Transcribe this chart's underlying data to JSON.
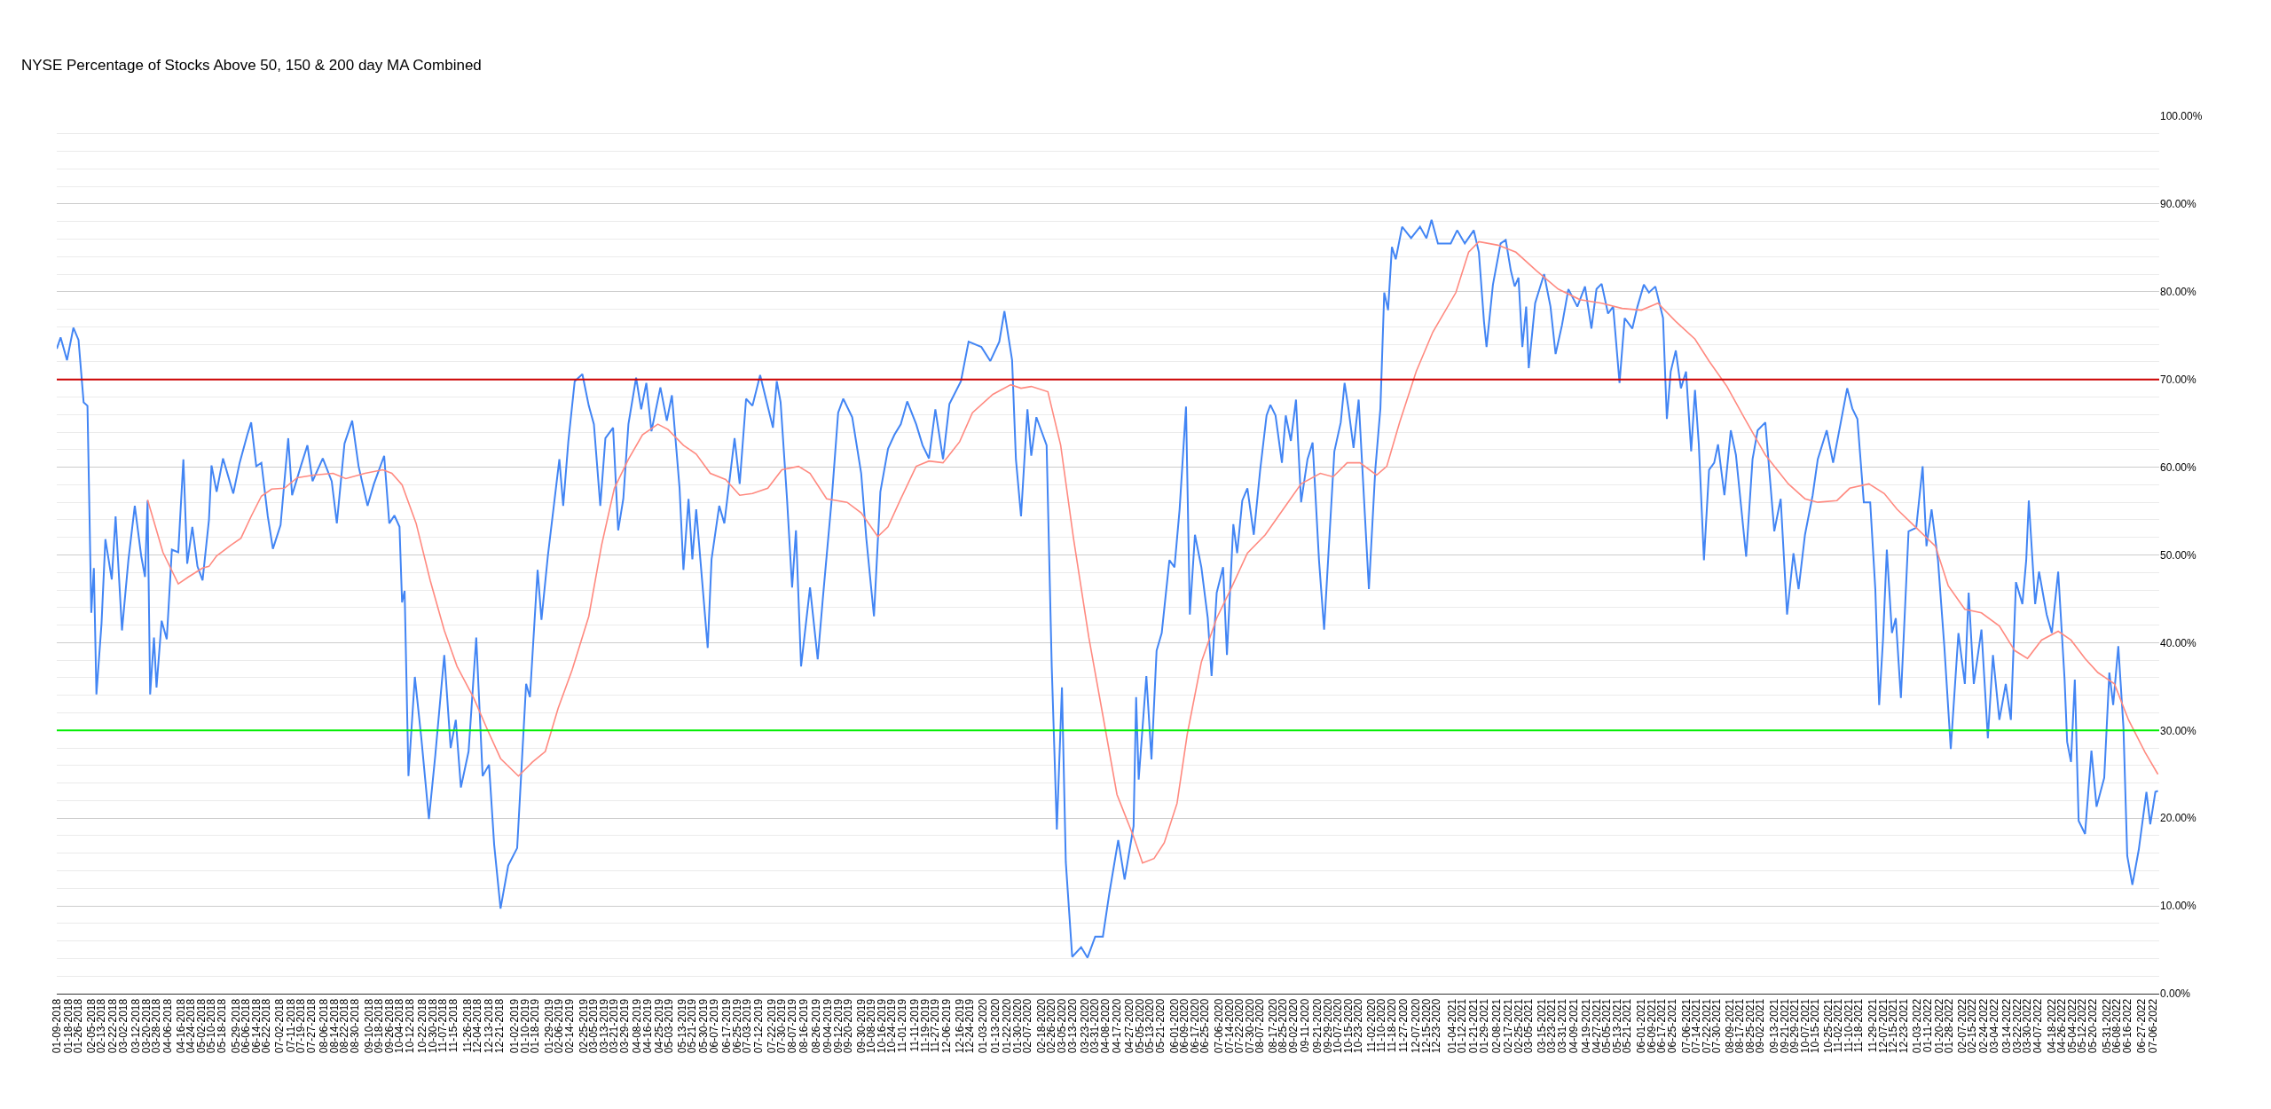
{
  "chart_data": {
    "type": "line",
    "title": "NYSE Percentage of Stocks Above 50, 150 & 200 day MA Combined",
    "series": [
      {
        "color": "#4285f4",
        "x": [
          "2018-01-09",
          "2018-01-12",
          "2018-01-17",
          "2018-01-22",
          "2018-01-26",
          "2018-01-30",
          "2018-02-02",
          "2018-02-05",
          "2018-02-07",
          "2018-02-09",
          "2018-02-13",
          "2018-02-16",
          "2018-02-21",
          "2018-02-24",
          "2018-03-01",
          "2018-03-06",
          "2018-03-11",
          "2018-03-16",
          "2018-03-19",
          "2018-03-21",
          "2018-03-23",
          "2018-03-26",
          "2018-03-28",
          "2018-04-01",
          "2018-04-05",
          "2018-04-09",
          "2018-04-14",
          "2018-04-18",
          "2018-04-21",
          "2018-04-25",
          "2018-04-29",
          "2018-05-03",
          "2018-05-08",
          "2018-05-10",
          "2018-05-14",
          "2018-05-19",
          "2018-05-27",
          "2018-06-01",
          "2018-06-07",
          "2018-06-10",
          "2018-06-14",
          "2018-06-18",
          "2018-06-23",
          "2018-06-27",
          "2018-07-03",
          "2018-07-09",
          "2018-07-12",
          "2018-07-19",
          "2018-07-24",
          "2018-07-28",
          "2018-08-05",
          "2018-08-12",
          "2018-08-16",
          "2018-08-22",
          "2018-08-28",
          "2018-09-02",
          "2018-09-09",
          "2018-09-14",
          "2018-09-22",
          "2018-09-26",
          "2018-09-30",
          "2018-10-04",
          "2018-10-06",
          "2018-10-08",
          "2018-10-11",
          "2018-10-16",
          "2018-10-21",
          "2018-10-27",
          "2018-11-01",
          "2018-11-08",
          "2018-11-13",
          "2018-11-17",
          "2018-11-21",
          "2018-11-27",
          "2018-12-03",
          "2018-12-08",
          "2018-12-13",
          "2018-12-17",
          "2018-12-22",
          "2018-12-28",
          "2019-01-04",
          "2019-01-11",
          "2019-01-14",
          "2019-01-20",
          "2019-01-23",
          "2019-01-28",
          "2019-02-02",
          "2019-02-06",
          "2019-02-09",
          "2019-02-13",
          "2019-02-18",
          "2019-02-24",
          "2019-03-01",
          "2019-03-05",
          "2019-03-10",
          "2019-03-14",
          "2019-03-20",
          "2019-03-24",
          "2019-03-28",
          "2019-04-01",
          "2019-04-07",
          "2019-04-11",
          "2019-04-15",
          "2019-04-19",
          "2019-04-26",
          "2019-05-01",
          "2019-05-05",
          "2019-05-11",
          "2019-05-14",
          "2019-05-18",
          "2019-05-21",
          "2019-05-24",
          "2019-06-02",
          "2019-06-05",
          "2019-06-11",
          "2019-06-15",
          "2019-06-23",
          "2019-06-27",
          "2019-07-02",
          "2019-07-07",
          "2019-07-13",
          "2019-07-23",
          "2019-07-26",
          "2019-07-29",
          "2019-08-03",
          "2019-08-07",
          "2019-08-10",
          "2019-08-14",
          "2019-08-21",
          "2019-08-27",
          "2019-08-31",
          "2019-09-07",
          "2019-09-12",
          "2019-09-16",
          "2019-09-23",
          "2019-09-30",
          "2019-10-04",
          "2019-10-10",
          "2019-10-15",
          "2019-10-21",
          "2019-10-26",
          "2019-10-31",
          "2019-11-05",
          "2019-11-12",
          "2019-11-17",
          "2019-11-22",
          "2019-11-27",
          "2019-12-03",
          "2019-12-08",
          "2019-12-17",
          "2019-12-23",
          "2020-01-02",
          "2020-01-09",
          "2020-01-16",
          "2020-01-20",
          "2020-01-26",
          "2020-01-29",
          "2020-02-02",
          "2020-02-07",
          "2020-02-10",
          "2020-02-14",
          "2020-02-22",
          "2020-02-26",
          "2020-03-01",
          "2020-03-05",
          "2020-03-08",
          "2020-03-13",
          "2020-03-20",
          "2020-03-25",
          "2020-03-31",
          "2020-04-06",
          "2020-04-11",
          "2020-04-18",
          "2020-04-23",
          "2020-04-30",
          "2020-05-02",
          "2020-05-04",
          "2020-05-10",
          "2020-05-14",
          "2020-05-18",
          "2020-05-22",
          "2020-05-28",
          "2020-06-01",
          "2020-06-05",
          "2020-06-10",
          "2020-06-13",
          "2020-06-17",
          "2020-06-22",
          "2020-06-27",
          "2020-06-30",
          "2020-07-04",
          "2020-07-09",
          "2020-07-12",
          "2020-07-17",
          "2020-07-20",
          "2020-07-24",
          "2020-07-28",
          "2020-08-02",
          "2020-08-07",
          "2020-08-12",
          "2020-08-15",
          "2020-08-19",
          "2020-08-24",
          "2020-08-27",
          "2020-08-31",
          "2020-09-04",
          "2020-09-08",
          "2020-09-13",
          "2020-09-17",
          "2020-09-22",
          "2020-09-26",
          "2020-09-30",
          "2020-10-04",
          "2020-10-09",
          "2020-10-12",
          "2020-10-15",
          "2020-10-19",
          "2020-10-23",
          "2020-10-31",
          "2020-11-05",
          "2020-11-09",
          "2020-11-12",
          "2020-11-15",
          "2020-11-18",
          "2020-11-21",
          "2020-11-26",
          "2020-12-03",
          "2020-12-10",
          "2020-12-15",
          "2020-12-19",
          "2020-12-24",
          "2021-01-03",
          "2021-01-08",
          "2021-01-14",
          "2021-01-21",
          "2021-01-25",
          "2021-01-29",
          "2021-01-31",
          "2021-02-05",
          "2021-02-11",
          "2021-02-15",
          "2021-02-19",
          "2021-02-22",
          "2021-02-25",
          "2021-02-28",
          "2021-03-03",
          "2021-03-05",
          "2021-03-10",
          "2021-03-17",
          "2021-03-22",
          "2021-03-26",
          "2021-03-31",
          "2021-04-05",
          "2021-04-12",
          "2021-04-18",
          "2021-04-23",
          "2021-04-27",
          "2021-05-01",
          "2021-05-06",
          "2021-05-10",
          "2021-05-15",
          "2021-05-19",
          "2021-05-25",
          "2021-05-29",
          "2021-06-03",
          "2021-06-07",
          "2021-06-12",
          "2021-06-18",
          "2021-06-21",
          "2021-06-24",
          "2021-06-28",
          "2021-07-02",
          "2021-07-06",
          "2021-07-10",
          "2021-07-13",
          "2021-07-16",
          "2021-07-20",
          "2021-07-24",
          "2021-07-28",
          "2021-07-31",
          "2021-08-05",
          "2021-08-10",
          "2021-08-14",
          "2021-08-22",
          "2021-08-27",
          "2021-08-31",
          "2021-09-06",
          "2021-09-13",
          "2021-09-18",
          "2021-09-23",
          "2021-09-28",
          "2021-10-02",
          "2021-10-07",
          "2021-10-13",
          "2021-10-17",
          "2021-10-24",
          "2021-10-29",
          "2021-11-04",
          "2021-11-09",
          "2021-11-13",
          "2021-11-17",
          "2021-11-22",
          "2021-11-27",
          "2021-12-01",
          "2021-12-04",
          "2021-12-07",
          "2021-12-10",
          "2021-12-14",
          "2021-12-17",
          "2021-12-21",
          "2021-12-27",
          "2022-01-02",
          "2022-01-07",
          "2022-01-10",
          "2022-01-14",
          "2022-01-19",
          "2022-01-24",
          "2022-01-29",
          "2022-02-04",
          "2022-02-09",
          "2022-02-12",
          "2022-02-16",
          "2022-02-22",
          "2022-02-27",
          "2022-03-03",
          "2022-03-08",
          "2022-03-13",
          "2022-03-17",
          "2022-03-21",
          "2022-03-26",
          "2022-03-29",
          "2022-03-31",
          "2022-04-05",
          "2022-04-08",
          "2022-04-14",
          "2022-04-18",
          "2022-04-23",
          "2022-04-28",
          "2022-04-30",
          "2022-05-03",
          "2022-05-06",
          "2022-05-09",
          "2022-05-14",
          "2022-05-19",
          "2022-05-23",
          "2022-05-29",
          "2022-06-02",
          "2022-06-05",
          "2022-06-09",
          "2022-06-13",
          "2022-06-16",
          "2022-06-20",
          "2022-06-25",
          "2022-07-01",
          "2022-07-04",
          "2022-07-08",
          "2022-07-10"
        ],
        "values": [
          73.5,
          74.8,
          72.2,
          75.9,
          74.5,
          67.4,
          67.0,
          43.4,
          48.5,
          34.1,
          42.2,
          51.8,
          47.2,
          54.4,
          41.4,
          49.4,
          55.6,
          49.9,
          47.5,
          56.2,
          34.1,
          40.6,
          34.9,
          42.5,
          40.4,
          50.6,
          50.3,
          60.9,
          49.0,
          53.2,
          48.7,
          47.1,
          54.0,
          60.2,
          57.2,
          61.0,
          57.0,
          60.5,
          63.7,
          65.1,
          60.1,
          60.5,
          54.4,
          50.7,
          53.4,
          63.3,
          56.8,
          60.2,
          62.5,
          58.4,
          61.0,
          58.4,
          53.6,
          62.7,
          65.3,
          60.1,
          55.6,
          58.1,
          61.3,
          53.6,
          54.5,
          53.2,
          44.6,
          45.9,
          24.8,
          36.1,
          29.2,
          19.9,
          27.2,
          38.6,
          28.0,
          31.2,
          23.5,
          27.6,
          40.6,
          24.8,
          26.1,
          17.0,
          9.7,
          14.6,
          16.6,
          35.3,
          33.8,
          48.3,
          42.6,
          49.9,
          56.0,
          60.9,
          55.6,
          62.9,
          69.8,
          70.6,
          67.0,
          64.9,
          55.6,
          63.3,
          64.5,
          52.8,
          56.4,
          64.9,
          70.2,
          66.6,
          69.6,
          64.1,
          69.1,
          65.3,
          68.2,
          57.6,
          48.3,
          56.4,
          49.5,
          55.2,
          39.4,
          49.5,
          55.6,
          53.6,
          63.3,
          58.1,
          67.8,
          67.0,
          70.5,
          64.5,
          69.8,
          67.4,
          56.4,
          46.3,
          52.8,
          37.3,
          46.3,
          38.1,
          45.0,
          56.4,
          66.2,
          67.8,
          65.7,
          59.3,
          51.9,
          43.0,
          57.2,
          62.1,
          63.7,
          64.9,
          67.5,
          64.9,
          62.5,
          61.0,
          66.6,
          60.9,
          67.2,
          69.8,
          74.3,
          73.7,
          72.1,
          74.3,
          77.8,
          72.2,
          60.9,
          54.4,
          66.6,
          61.3,
          65.7,
          62.5,
          37.3,
          18.7,
          34.9,
          15.0,
          4.2,
          5.3,
          4.1,
          6.5,
          6.5,
          11.4,
          17.5,
          13.0,
          19.1,
          33.8,
          24.4,
          36.2,
          26.7,
          39.1,
          41.1,
          49.4,
          48.6,
          55.2,
          66.9,
          43.2,
          52.3,
          48.6,
          42.8,
          36.2,
          45.7,
          48.6,
          38.6,
          53.5,
          50.2,
          56.2,
          57.6,
          52.3,
          59.7,
          65.9,
          67.1,
          65.9,
          60.5,
          65.9,
          63.0,
          67.7,
          56.0,
          60.9,
          62.8,
          49.4,
          41.5,
          51.7,
          61.8,
          65.1,
          69.6,
          66.7,
          62.2,
          67.7,
          46.1,
          59.7,
          66.7,
          79.9,
          77.9,
          85.1,
          83.7,
          87.4,
          86.1,
          87.4,
          86.1,
          88.2,
          85.5,
          85.5,
          87.0,
          85.5,
          87.0,
          84.5,
          76.6,
          73.7,
          80.8,
          85.5,
          85.9,
          82.4,
          80.6,
          81.6,
          73.7,
          78.3,
          71.3,
          78.7,
          82.0,
          78.3,
          72.9,
          76.2,
          80.3,
          78.3,
          80.6,
          75.8,
          80.3,
          80.9,
          77.5,
          78.3,
          69.6,
          77.0,
          75.8,
          78.3,
          80.8,
          79.9,
          80.6,
          77.0,
          65.5,
          70.9,
          73.3,
          69.0,
          70.9,
          61.8,
          68.8,
          62.6,
          49.4,
          59.7,
          60.5,
          62.6,
          56.8,
          64.2,
          61.4,
          49.8,
          60.9,
          64.2,
          65.1,
          52.7,
          56.4,
          43.2,
          50.2,
          46.1,
          52.3,
          56.8,
          60.9,
          64.2,
          60.5,
          65.1,
          69.0,
          66.7,
          65.5,
          56.0,
          56.0,
          46.1,
          32.9,
          40.3,
          50.6,
          41.1,
          42.8,
          33.7,
          52.7,
          53.1,
          60.1,
          51.0,
          55.2,
          49.4,
          39.5,
          27.9,
          41.1,
          35.3,
          45.7,
          35.3,
          41.5,
          29.1,
          38.6,
          31.2,
          35.3,
          31.2,
          46.9,
          44.4,
          49.4,
          56.2,
          44.4,
          48.1,
          43.2,
          41.1,
          48.1,
          35.8,
          28.7,
          26.4,
          35.8,
          19.7,
          18.2,
          27.7,
          21.3,
          24.6,
          36.6,
          32.9,
          39.6,
          30.4,
          15.7,
          12.4,
          16.4,
          23.0,
          19.3,
          23.0,
          23.1
        ]
      },
      {
        "color": "#ff8a80",
        "x": [
          "2018-03-21",
          "2018-04-02",
          "2018-04-14",
          "2018-04-22",
          "2018-05-03",
          "2018-05-08",
          "2018-05-14",
          "2018-05-25",
          "2018-06-02",
          "2018-06-10",
          "2018-06-18",
          "2018-06-26",
          "2018-07-06",
          "2018-07-16",
          "2018-07-29",
          "2018-08-13",
          "2018-08-23",
          "2018-09-07",
          "2018-09-21",
          "2018-09-28",
          "2018-10-06",
          "2018-10-17",
          "2018-10-28",
          "2018-11-08",
          "2018-11-18",
          "2018-12-01",
          "2018-12-12",
          "2018-12-22",
          "2019-01-05",
          "2019-01-16",
          "2019-01-26",
          "2019-02-05",
          "2019-02-16",
          "2019-03-01",
          "2019-03-11",
          "2019-03-21",
          "2019-04-01",
          "2019-04-12",
          "2019-04-24",
          "2019-05-02",
          "2019-05-14",
          "2019-05-24",
          "2019-06-04",
          "2019-06-16",
          "2019-06-27",
          "2019-07-07",
          "2019-07-19",
          "2019-07-30",
          "2019-08-12",
          "2019-08-21",
          "2019-09-03",
          "2019-09-19",
          "2019-09-30",
          "2019-10-13",
          "2019-10-21",
          "2019-10-31",
          "2019-11-12",
          "2019-11-22",
          "2019-12-03",
          "2019-12-16",
          "2019-12-26",
          "2020-01-11",
          "2020-01-25",
          "2020-02-02",
          "2020-02-10",
          "2020-02-23",
          "2020-03-04",
          "2020-03-14",
          "2020-03-26",
          "2020-04-06",
          "2020-04-17",
          "2020-04-30",
          "2020-05-07",
          "2020-05-16",
          "2020-05-24",
          "2020-06-03",
          "2020-06-11",
          "2020-06-22",
          "2020-07-04",
          "2020-07-15",
          "2020-07-28",
          "2020-08-11",
          "2020-08-25",
          "2020-09-08",
          "2020-09-23",
          "2020-10-03",
          "2020-10-14",
          "2020-10-24",
          "2020-11-06",
          "2020-11-14",
          "2020-11-24",
          "2020-12-07",
          "2020-12-20",
          "2021-01-07",
          "2021-01-17",
          "2021-01-25",
          "2021-02-09",
          "2021-02-23",
          "2021-03-11",
          "2021-03-28",
          "2021-04-14",
          "2021-05-01",
          "2021-05-17",
          "2021-06-01",
          "2021-06-14",
          "2021-06-28",
          "2021-07-13",
          "2021-07-24",
          "2021-08-07",
          "2021-08-21",
          "2021-09-06",
          "2021-09-24",
          "2021-10-07",
          "2021-10-17",
          "2021-11-01",
          "2021-11-11",
          "2021-11-26",
          "2021-12-08",
          "2021-12-18",
          "2022-01-02",
          "2022-01-17",
          "2022-01-27",
          "2022-02-09",
          "2022-02-22",
          "2022-03-08",
          "2022-03-20",
          "2022-03-30",
          "2022-04-10",
          "2022-04-23",
          "2022-05-03",
          "2022-05-14",
          "2022-05-24",
          "2022-06-06",
          "2022-06-17",
          "2022-06-30",
          "2022-07-10"
        ],
        "values": [
          56.3,
          50.3,
          46.7,
          47.5,
          48.5,
          48.7,
          49.9,
          51.1,
          51.9,
          54.4,
          56.7,
          57.5,
          57.6,
          58.8,
          59.1,
          59.3,
          58.7,
          59.3,
          59.7,
          59.3,
          58.0,
          53.6,
          47.1,
          41.4,
          37.3,
          33.7,
          30.0,
          26.8,
          24.8,
          26.4,
          27.6,
          32.5,
          36.9,
          43.0,
          51.1,
          57.6,
          60.9,
          63.7,
          64.9,
          64.3,
          62.5,
          61.5,
          59.3,
          58.6,
          56.8,
          57.0,
          57.6,
          59.7,
          60.1,
          59.3,
          56.4,
          56.0,
          54.8,
          52.1,
          53.2,
          56.4,
          60.1,
          60.7,
          60.5,
          62.9,
          66.2,
          68.3,
          69.4,
          69.0,
          69.2,
          68.6,
          62.5,
          51.9,
          40.6,
          31.7,
          22.7,
          17.9,
          14.9,
          15.4,
          17.2,
          21.7,
          29.6,
          37.8,
          42.8,
          46.1,
          50.2,
          52.3,
          55.2,
          58.1,
          59.3,
          58.9,
          60.5,
          60.5,
          59.1,
          60.1,
          65.1,
          70.9,
          75.4,
          79.9,
          84.5,
          85.7,
          85.3,
          84.5,
          82.4,
          80.3,
          79.1,
          78.7,
          78.1,
          77.9,
          78.7,
          76.6,
          74.6,
          72.1,
          69.2,
          65.5,
          61.4,
          58.1,
          56.4,
          56.0,
          56.2,
          57.6,
          58.1,
          57.0,
          55.2,
          53.1,
          51.0,
          46.5,
          43.8,
          43.4,
          41.9,
          39.1,
          38.2,
          40.3,
          41.3,
          40.3,
          38.2,
          36.6,
          35.3,
          31.2,
          27.5,
          25.0
        ]
      }
    ],
    "ref_lines": [
      {
        "axis": "y",
        "value": 70,
        "color": "#cc0000"
      },
      {
        "axis": "y",
        "value": 30,
        "color": "#00ee00"
      }
    ],
    "xlim": [
      "2018-01-09",
      "2022-07-11"
    ],
    "xticks": [
      {
        "value": "2018-01-09",
        "label": "01-09-2018"
      },
      {
        "value": "2018-01-18",
        "label": "01-18-2018"
      },
      {
        "value": "2018-01-26",
        "label": "01-26-2018"
      },
      {
        "value": "2018-02-05",
        "label": "02-05-2018"
      },
      {
        "value": "2018-02-13",
        "label": "02-13-2018"
      },
      {
        "value": "2018-02-22",
        "label": "02-22-2018"
      },
      {
        "value": "2018-03-02",
        "label": "03-02-2018"
      },
      {
        "value": "2018-03-12",
        "label": "03-12-2018"
      },
      {
        "value": "2018-03-20",
        "label": "03-20-2018"
      },
      {
        "value": "2018-03-28",
        "label": "03-28-2018"
      },
      {
        "value": "2018-04-06",
        "label": "04-06-2018"
      },
      {
        "value": "2018-04-16",
        "label": "04-16-2018"
      },
      {
        "value": "2018-04-24",
        "label": "04-24-2018"
      },
      {
        "value": "2018-05-02",
        "label": "05-02-2018"
      },
      {
        "value": "2018-05-10",
        "label": "05-10-2018"
      },
      {
        "value": "2018-05-18",
        "label": "05-18-2018"
      },
      {
        "value": "2018-05-29",
        "label": "05-29-2018"
      },
      {
        "value": "2018-06-06",
        "label": "06-06-2018"
      },
      {
        "value": "2018-06-14",
        "label": "06-14-2018"
      },
      {
        "value": "2018-06-22",
        "label": "06-22-2018"
      },
      {
        "value": "2018-07-02",
        "label": "07-02-2018"
      },
      {
        "value": "2018-07-11",
        "label": "07-11-2018"
      },
      {
        "value": "2018-07-19",
        "label": "07-19-2018"
      },
      {
        "value": "2018-07-27",
        "label": "07-27-2018"
      },
      {
        "value": "2018-08-06",
        "label": "08-06-2018"
      },
      {
        "value": "2018-08-14",
        "label": "08-14-2018"
      },
      {
        "value": "2018-08-22",
        "label": "08-22-2018"
      },
      {
        "value": "2018-08-30",
        "label": "08-30-2018"
      },
      {
        "value": "2018-09-10",
        "label": "09-10-2018"
      },
      {
        "value": "2018-09-18",
        "label": "09-18-2018"
      },
      {
        "value": "2018-09-26",
        "label": "09-26-2018"
      },
      {
        "value": "2018-10-04",
        "label": "10-04-2018"
      },
      {
        "value": "2018-10-12",
        "label": "10-12-2018"
      },
      {
        "value": "2018-10-22",
        "label": "10-22-2018"
      },
      {
        "value": "2018-10-30",
        "label": "10-30-2018"
      },
      {
        "value": "2018-11-07",
        "label": "11-07-2018"
      },
      {
        "value": "2018-11-15",
        "label": "11-15-2018"
      },
      {
        "value": "2018-11-26",
        "label": "11-26-2018"
      },
      {
        "value": "2018-12-04",
        "label": "12-04-2018"
      },
      {
        "value": "2018-12-13",
        "label": "12-13-2018"
      },
      {
        "value": "2018-12-21",
        "label": "12-21-2018"
      },
      {
        "value": "2019-01-02",
        "label": "01-02-2019"
      },
      {
        "value": "2019-01-10",
        "label": "01-10-2019"
      },
      {
        "value": "2019-01-18",
        "label": "01-18-2019"
      },
      {
        "value": "2019-01-29",
        "label": "01-29-2019"
      },
      {
        "value": "2019-02-06",
        "label": "02-06-2019"
      },
      {
        "value": "2019-02-14",
        "label": "02-14-2019"
      },
      {
        "value": "2019-02-25",
        "label": "02-25-2019"
      },
      {
        "value": "2019-03-05",
        "label": "03-05-2019"
      },
      {
        "value": "2019-03-13",
        "label": "03-13-2019"
      },
      {
        "value": "2019-03-21",
        "label": "03-21-2019"
      },
      {
        "value": "2019-03-29",
        "label": "03-29-2019"
      },
      {
        "value": "2019-04-08",
        "label": "04-08-2019"
      },
      {
        "value": "2019-04-16",
        "label": "04-16-2019"
      },
      {
        "value": "2019-04-25",
        "label": "04-25-2019"
      },
      {
        "value": "2019-05-03",
        "label": "05-03-2019"
      },
      {
        "value": "2019-05-13",
        "label": "05-13-2019"
      },
      {
        "value": "2019-05-21",
        "label": "05-21-2019"
      },
      {
        "value": "2019-05-30",
        "label": "05-30-2019"
      },
      {
        "value": "2019-06-07",
        "label": "06-07-2019"
      },
      {
        "value": "2019-06-17",
        "label": "06-17-2019"
      },
      {
        "value": "2019-06-25",
        "label": "06-25-2019"
      },
      {
        "value": "2019-07-03",
        "label": "07-03-2019"
      },
      {
        "value": "2019-07-12",
        "label": "07-12-2019"
      },
      {
        "value": "2019-07-22",
        "label": "07-22-2019"
      },
      {
        "value": "2019-07-30",
        "label": "07-30-2019"
      },
      {
        "value": "2019-08-07",
        "label": "08-07-2019"
      },
      {
        "value": "2019-08-16",
        "label": "08-16-2019"
      },
      {
        "value": "2019-08-26",
        "label": "08-26-2019"
      },
      {
        "value": "2019-09-04",
        "label": "09-04-2019"
      },
      {
        "value": "2019-09-12",
        "label": "09-12-2019"
      },
      {
        "value": "2019-09-20",
        "label": "09-20-2019"
      },
      {
        "value": "2019-09-30",
        "label": "09-30-2019"
      },
      {
        "value": "2019-10-08",
        "label": "10-08-2019"
      },
      {
        "value": "2019-10-16",
        "label": "10-16-2019"
      },
      {
        "value": "2019-10-24",
        "label": "10-24-2019"
      },
      {
        "value": "2019-11-01",
        "label": "11-01-2019"
      },
      {
        "value": "2019-11-11",
        "label": "11-11-2019"
      },
      {
        "value": "2019-11-19",
        "label": "11-19-2019"
      },
      {
        "value": "2019-11-27",
        "label": "11-27-2019"
      },
      {
        "value": "2019-12-06",
        "label": "12-06-2019"
      },
      {
        "value": "2019-12-16",
        "label": "12-16-2019"
      },
      {
        "value": "2019-12-24",
        "label": "12-24-2019"
      },
      {
        "value": "2020-01-03",
        "label": "01-03-2020"
      },
      {
        "value": "2020-01-13",
        "label": "01-13-2020"
      },
      {
        "value": "2020-01-22",
        "label": "01-22-2020"
      },
      {
        "value": "2020-01-30",
        "label": "01-30-2020"
      },
      {
        "value": "2020-02-07",
        "label": "02-07-2020"
      },
      {
        "value": "2020-02-18",
        "label": "02-18-2020"
      },
      {
        "value": "2020-02-26",
        "label": "02-26-2020"
      },
      {
        "value": "2020-03-05",
        "label": "03-05-2020"
      },
      {
        "value": "2020-03-13",
        "label": "03-13-2020"
      },
      {
        "value": "2020-03-23",
        "label": "03-23-2020"
      },
      {
        "value": "2020-03-31",
        "label": "03-31-2020"
      },
      {
        "value": "2020-04-08",
        "label": "04-08-2020"
      },
      {
        "value": "2020-04-17",
        "label": "04-17-2020"
      },
      {
        "value": "2020-04-27",
        "label": "04-27-2020"
      },
      {
        "value": "2020-05-05",
        "label": "05-05-2020"
      },
      {
        "value": "2020-05-13",
        "label": "05-13-2020"
      },
      {
        "value": "2020-05-21",
        "label": "05-21-2020"
      },
      {
        "value": "2020-06-01",
        "label": "06-01-2020"
      },
      {
        "value": "2020-06-09",
        "label": "06-09-2020"
      },
      {
        "value": "2020-06-17",
        "label": "06-17-2020"
      },
      {
        "value": "2020-06-25",
        "label": "06-25-2020"
      },
      {
        "value": "2020-07-06",
        "label": "07-06-2020"
      },
      {
        "value": "2020-07-14",
        "label": "07-14-2020"
      },
      {
        "value": "2020-07-22",
        "label": "07-22-2020"
      },
      {
        "value": "2020-07-30",
        "label": "07-30-2020"
      },
      {
        "value": "2020-08-07",
        "label": "08-07-2020"
      },
      {
        "value": "2020-08-17",
        "label": "08-17-2020"
      },
      {
        "value": "2020-08-25",
        "label": "08-25-2020"
      },
      {
        "value": "2020-09-02",
        "label": "09-02-2020"
      },
      {
        "value": "2020-09-11",
        "label": "09-11-2020"
      },
      {
        "value": "2020-09-21",
        "label": "09-21-2020"
      },
      {
        "value": "2020-09-29",
        "label": "09-29-2020"
      },
      {
        "value": "2020-10-07",
        "label": "10-07-2020"
      },
      {
        "value": "2020-10-15",
        "label": "10-15-2020"
      },
      {
        "value": "2020-10-23",
        "label": "10-23-2020"
      },
      {
        "value": "2020-11-02",
        "label": "11-02-2020"
      },
      {
        "value": "2020-11-10",
        "label": "11-10-2020"
      },
      {
        "value": "2020-11-18",
        "label": "11-18-2020"
      },
      {
        "value": "2020-11-27",
        "label": "11-27-2020"
      },
      {
        "value": "2020-12-07",
        "label": "12-07-2020"
      },
      {
        "value": "2020-12-15",
        "label": "12-15-2020"
      },
      {
        "value": "2020-12-23",
        "label": "12-23-2020"
      },
      {
        "value": "2021-01-04",
        "label": "01-04-2021"
      },
      {
        "value": "2021-01-12",
        "label": "01-12-2021"
      },
      {
        "value": "2021-01-21",
        "label": "01-21-2021"
      },
      {
        "value": "2021-01-29",
        "label": "01-29-2021"
      },
      {
        "value": "2021-02-08",
        "label": "02-08-2021"
      },
      {
        "value": "2021-02-17",
        "label": "02-17-2021"
      },
      {
        "value": "2021-02-25",
        "label": "02-25-2021"
      },
      {
        "value": "2021-03-05",
        "label": "03-05-2021"
      },
      {
        "value": "2021-03-15",
        "label": "03-15-2021"
      },
      {
        "value": "2021-03-23",
        "label": "03-23-2021"
      },
      {
        "value": "2021-03-31",
        "label": "03-31-2021"
      },
      {
        "value": "2021-04-09",
        "label": "04-09-2021"
      },
      {
        "value": "2021-04-19",
        "label": "04-19-2021"
      },
      {
        "value": "2021-04-27",
        "label": "04-27-2021"
      },
      {
        "value": "2021-05-05",
        "label": "05-05-2021"
      },
      {
        "value": "2021-05-13",
        "label": "05-13-2021"
      },
      {
        "value": "2021-05-21",
        "label": "05-21-2021"
      },
      {
        "value": "2021-06-01",
        "label": "06-01-2021"
      },
      {
        "value": "2021-06-09",
        "label": "06-09-2021"
      },
      {
        "value": "2021-06-17",
        "label": "06-17-2021"
      },
      {
        "value": "2021-06-25",
        "label": "06-25-2021"
      },
      {
        "value": "2021-07-06",
        "label": "07-06-2021"
      },
      {
        "value": "2021-07-14",
        "label": "07-14-2021"
      },
      {
        "value": "2021-07-22",
        "label": "07-22-2021"
      },
      {
        "value": "2021-07-30",
        "label": "07-30-2021"
      },
      {
        "value": "2021-08-09",
        "label": "08-09-2021"
      },
      {
        "value": "2021-08-17",
        "label": "08-17-2021"
      },
      {
        "value": "2021-08-25",
        "label": "08-25-2021"
      },
      {
        "value": "2021-09-02",
        "label": "09-02-2021"
      },
      {
        "value": "2021-09-13",
        "label": "09-13-2021"
      },
      {
        "value": "2021-09-21",
        "label": "09-21-2021"
      },
      {
        "value": "2021-09-29",
        "label": "09-29-2021"
      },
      {
        "value": "2021-10-07",
        "label": "10-07-2021"
      },
      {
        "value": "2021-10-15",
        "label": "10-15-2021"
      },
      {
        "value": "2021-10-25",
        "label": "10-25-2021"
      },
      {
        "value": "2021-11-02",
        "label": "11-02-2021"
      },
      {
        "value": "2021-11-10",
        "label": "11-10-2021"
      },
      {
        "value": "2021-11-18",
        "label": "11-18-2021"
      },
      {
        "value": "2021-11-29",
        "label": "11-29-2021"
      },
      {
        "value": "2021-12-07",
        "label": "12-07-2021"
      },
      {
        "value": "2021-12-15",
        "label": "12-15-2021"
      },
      {
        "value": "2021-12-23",
        "label": "12-23-2021"
      },
      {
        "value": "2022-01-03",
        "label": "01-03-2022"
      },
      {
        "value": "2022-01-11",
        "label": "01-11-2022"
      },
      {
        "value": "2022-01-20",
        "label": "01-20-2022"
      },
      {
        "value": "2022-01-28",
        "label": "01-28-2022"
      },
      {
        "value": "2022-02-07",
        "label": "02-07-2022"
      },
      {
        "value": "2022-02-15",
        "label": "02-15-2022"
      },
      {
        "value": "2022-02-24",
        "label": "02-24-2022"
      },
      {
        "value": "2022-03-04",
        "label": "03-04-2022"
      },
      {
        "value": "2022-03-14",
        "label": "03-14-2022"
      },
      {
        "value": "2022-03-22",
        "label": "03-22-2022"
      },
      {
        "value": "2022-03-30",
        "label": "03-30-2022"
      },
      {
        "value": "2022-04-07",
        "label": "04-07-2022"
      },
      {
        "value": "2022-04-18",
        "label": "04-18-2022"
      },
      {
        "value": "2022-04-26",
        "label": "04-26-2022"
      },
      {
        "value": "2022-05-04",
        "label": "05-04-2022"
      },
      {
        "value": "2022-05-12",
        "label": "05-12-2022"
      },
      {
        "value": "2022-05-20",
        "label": "05-20-2022"
      },
      {
        "value": "2022-05-31",
        "label": "05-31-2022"
      },
      {
        "value": "2022-06-08",
        "label": "06-08-2022"
      },
      {
        "value": "2022-06-16",
        "label": "06-16-2022"
      },
      {
        "value": "2022-06-27",
        "label": "06-27-2022"
      },
      {
        "value": "2022-07-06",
        "label": "07-06-2022"
      }
    ],
    "ylim": [
      0,
      100
    ],
    "yticks": [
      {
        "value": 0,
        "label": "0.00%"
      },
      {
        "value": 10,
        "label": "10.00%"
      },
      {
        "value": 20,
        "label": "20.00%"
      },
      {
        "value": 30,
        "label": "30.00%"
      },
      {
        "value": 40,
        "label": "40.00%"
      },
      {
        "value": 50,
        "label": "50.00%"
      },
      {
        "value": 60,
        "label": "60.00%"
      },
      {
        "value": 70,
        "label": "70.00%"
      },
      {
        "value": 80,
        "label": "80.00%"
      },
      {
        "value": 90,
        "label": "90.00%"
      },
      {
        "value": 100,
        "label": "100.00%"
      }
    ],
    "grid": "y",
    "marker": "none",
    "line_style": "solid"
  }
}
